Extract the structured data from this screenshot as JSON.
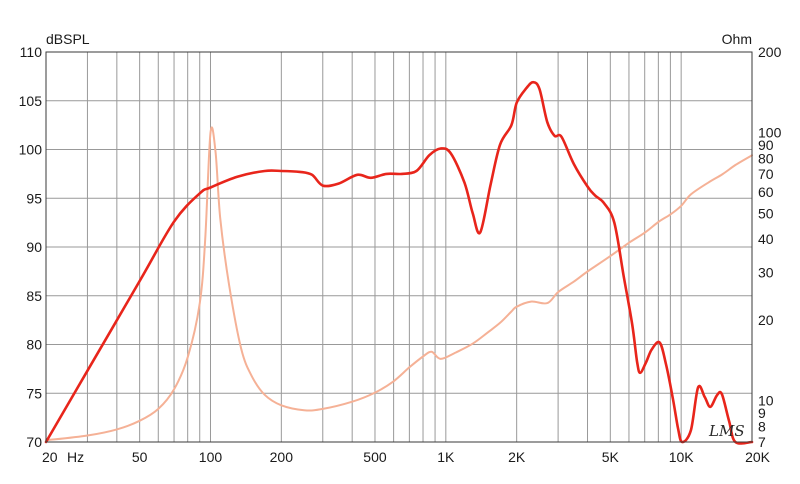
{
  "chart_data": {
    "type": "line",
    "title": "",
    "xlabel": "",
    "ylabel": "dBSPL",
    "y2label": "Ohm",
    "x_scale": "log",
    "xlim": [
      20,
      20000
    ],
    "ylim": [
      70,
      110
    ],
    "y2_scale": "log",
    "y2lim": [
      7,
      200
    ],
    "grid": true,
    "watermark": "LMS",
    "x_ticks": [
      {
        "v": 20,
        "label": "20"
      },
      {
        "v": 50,
        "label": "50"
      },
      {
        "v": 100,
        "label": "100"
      },
      {
        "v": 200,
        "label": "200"
      },
      {
        "v": 500,
        "label": "500"
      },
      {
        "v": 1000,
        "label": "1K"
      },
      {
        "v": 2000,
        "label": "2K"
      },
      {
        "v": 5000,
        "label": "5K"
      },
      {
        "v": 10000,
        "label": "10K"
      },
      {
        "v": 20000,
        "label": "20K"
      }
    ],
    "x_unit_label": "Hz",
    "y_ticks": [
      {
        "v": 110,
        "label": "110"
      },
      {
        "v": 105,
        "label": "105"
      },
      {
        "v": 100,
        "label": "100"
      },
      {
        "v": 95,
        "label": "95"
      },
      {
        "v": 90,
        "label": "90"
      },
      {
        "v": 85,
        "label": "85"
      },
      {
        "v": 80,
        "label": "80"
      },
      {
        "v": 75,
        "label": "75"
      },
      {
        "v": 70,
        "label": "70"
      }
    ],
    "y2_ticks": [
      {
        "v": 200,
        "label": "200"
      },
      {
        "v": 100,
        "label": "100"
      },
      {
        "v": 90,
        "label": "90"
      },
      {
        "v": 80,
        "label": "80"
      },
      {
        "v": 70,
        "label": "70"
      },
      {
        "v": 60,
        "label": "60"
      },
      {
        "v": 50,
        "label": "50"
      },
      {
        "v": 40,
        "label": "40"
      },
      {
        "v": 30,
        "label": "30"
      },
      {
        "v": 20,
        "label": "20"
      },
      {
        "v": 10,
        "label": "10"
      },
      {
        "v": 9,
        "label": "9"
      },
      {
        "v": 8,
        "label": "8"
      },
      {
        "v": 7,
        "label": "7"
      }
    ],
    "colors": {
      "spl": "#e8251b",
      "impedance": "#f5b196",
      "grid": "#999999"
    },
    "series": [
      {
        "key": "spl",
        "axis": "left",
        "values": [
          [
            20,
            70
          ],
          [
            30,
            77.3
          ],
          [
            50,
            86.5
          ],
          [
            70,
            92.6
          ],
          [
            90,
            95.5
          ],
          [
            100,
            96.1
          ],
          [
            130,
            97.2
          ],
          [
            170,
            97.8
          ],
          [
            200,
            97.8
          ],
          [
            240,
            97.7
          ],
          [
            270,
            97.4
          ],
          [
            300,
            96.3
          ],
          [
            350,
            96.5
          ],
          [
            420,
            97.4
          ],
          [
            480,
            97.1
          ],
          [
            560,
            97.5
          ],
          [
            650,
            97.5
          ],
          [
            750,
            97.8
          ],
          [
            850,
            99.4
          ],
          [
            950,
            100.1
          ],
          [
            1050,
            99.6
          ],
          [
            1200,
            96.6
          ],
          [
            1300,
            93.5
          ],
          [
            1400,
            91.5
          ],
          [
            1550,
            96.4
          ],
          [
            1700,
            100.5
          ],
          [
            1900,
            102.5
          ],
          [
            2000,
            104.8
          ],
          [
            2200,
            106.3
          ],
          [
            2350,
            106.9
          ],
          [
            2500,
            106.2
          ],
          [
            2700,
            102.8
          ],
          [
            2900,
            101.4
          ],
          [
            3100,
            101.3
          ],
          [
            3500,
            98.5
          ],
          [
            4000,
            96.2
          ],
          [
            4300,
            95.3
          ],
          [
            4700,
            94.5
          ],
          [
            5200,
            92.5
          ],
          [
            5700,
            87
          ],
          [
            6200,
            82
          ],
          [
            6500,
            78.2
          ],
          [
            6700,
            77.1
          ],
          [
            7100,
            78.2
          ],
          [
            7500,
            79.5
          ],
          [
            8100,
            80.2
          ],
          [
            8600,
            78.1
          ],
          [
            9200,
            74.6
          ],
          [
            9700,
            71.4
          ],
          [
            10100,
            70
          ],
          [
            11000,
            71.2
          ],
          [
            11800,
            75.6
          ],
          [
            12600,
            74.6
          ],
          [
            13300,
            73.6
          ],
          [
            14200,
            74.8
          ],
          [
            14900,
            74.9
          ],
          [
            16000,
            72.1
          ],
          [
            17000,
            70
          ],
          [
            20000,
            70
          ]
        ]
      },
      {
        "key": "impedance",
        "axis": "right",
        "values": [
          [
            20,
            7.1
          ],
          [
            30,
            7.4
          ],
          [
            40,
            7.8
          ],
          [
            50,
            8.4
          ],
          [
            60,
            9.3
          ],
          [
            70,
            11
          ],
          [
            80,
            14.5
          ],
          [
            90,
            23
          ],
          [
            95,
            40
          ],
          [
            100,
            100
          ],
          [
            105,
            85
          ],
          [
            110,
            48
          ],
          [
            120,
            27
          ],
          [
            135,
            15.6
          ],
          [
            150,
            12.3
          ],
          [
            170,
            10.5
          ],
          [
            200,
            9.6
          ],
          [
            250,
            9.2
          ],
          [
            300,
            9.3
          ],
          [
            400,
            9.9
          ],
          [
            500,
            10.7
          ],
          [
            600,
            11.8
          ],
          [
            700,
            13.3
          ],
          [
            800,
            14.6
          ],
          [
            870,
            15.2
          ],
          [
            950,
            14.3
          ],
          [
            1100,
            15.1
          ],
          [
            1300,
            16.3
          ],
          [
            1500,
            17.9
          ],
          [
            1700,
            19.5
          ],
          [
            1900,
            21.5
          ],
          [
            2000,
            22.4
          ],
          [
            2300,
            23.4
          ],
          [
            2700,
            23.1
          ],
          [
            3000,
            25.4
          ],
          [
            3500,
            27.8
          ],
          [
            4000,
            30.3
          ],
          [
            5000,
            34.6
          ],
          [
            6000,
            38.8
          ],
          [
            7000,
            42.3
          ],
          [
            8000,
            46.4
          ],
          [
            9000,
            49.5
          ],
          [
            10000,
            53.3
          ],
          [
            11000,
            58.8
          ],
          [
            13000,
            65
          ],
          [
            15000,
            70
          ],
          [
            17000,
            75.7
          ],
          [
            20000,
            82.3
          ]
        ]
      }
    ]
  }
}
